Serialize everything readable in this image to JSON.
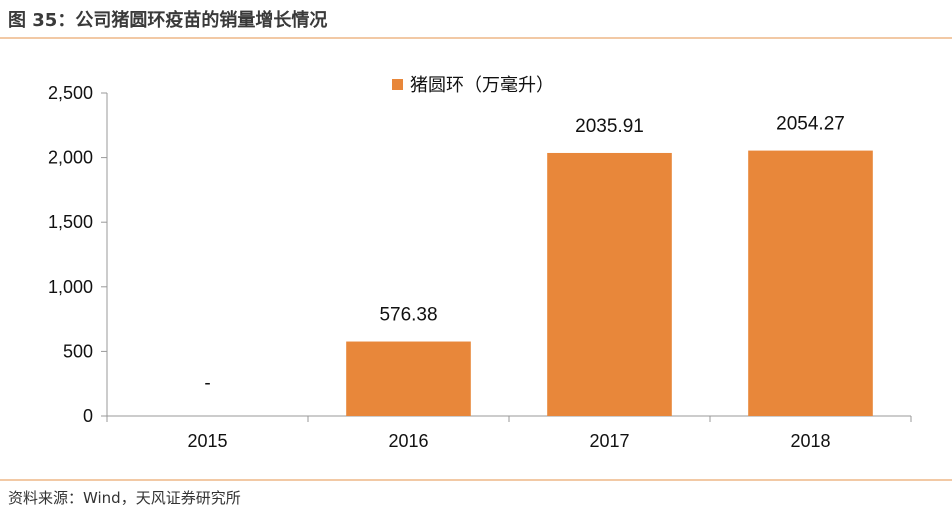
{
  "header": {
    "title": "图 35：公司猪圆环疫苗的销量增长情况"
  },
  "footer": {
    "source": "资料来源：Wind，天风证券研究所"
  },
  "colors": {
    "bar": "#e8873a",
    "axis": "#999999",
    "rule": "#f2c9a5"
  },
  "chart_data": {
    "type": "bar",
    "categories": [
      "2015",
      "2016",
      "2017",
      "2018"
    ],
    "series": [
      {
        "name": "猪圆环（万毫升）",
        "values": [
          null,
          576.38,
          2035.91,
          2054.27
        ]
      }
    ],
    "data_labels": [
      "-",
      "576.38",
      "2035.91",
      "2054.27"
    ],
    "ylim": [
      0,
      2500
    ],
    "yticks": [
      "0",
      "500",
      "1,000",
      "1,500",
      "2,000",
      "2,500"
    ],
    "ytick_values": [
      0,
      500,
      1000,
      1500,
      2000,
      2500
    ],
    "grid": false,
    "legend": "top-center"
  }
}
